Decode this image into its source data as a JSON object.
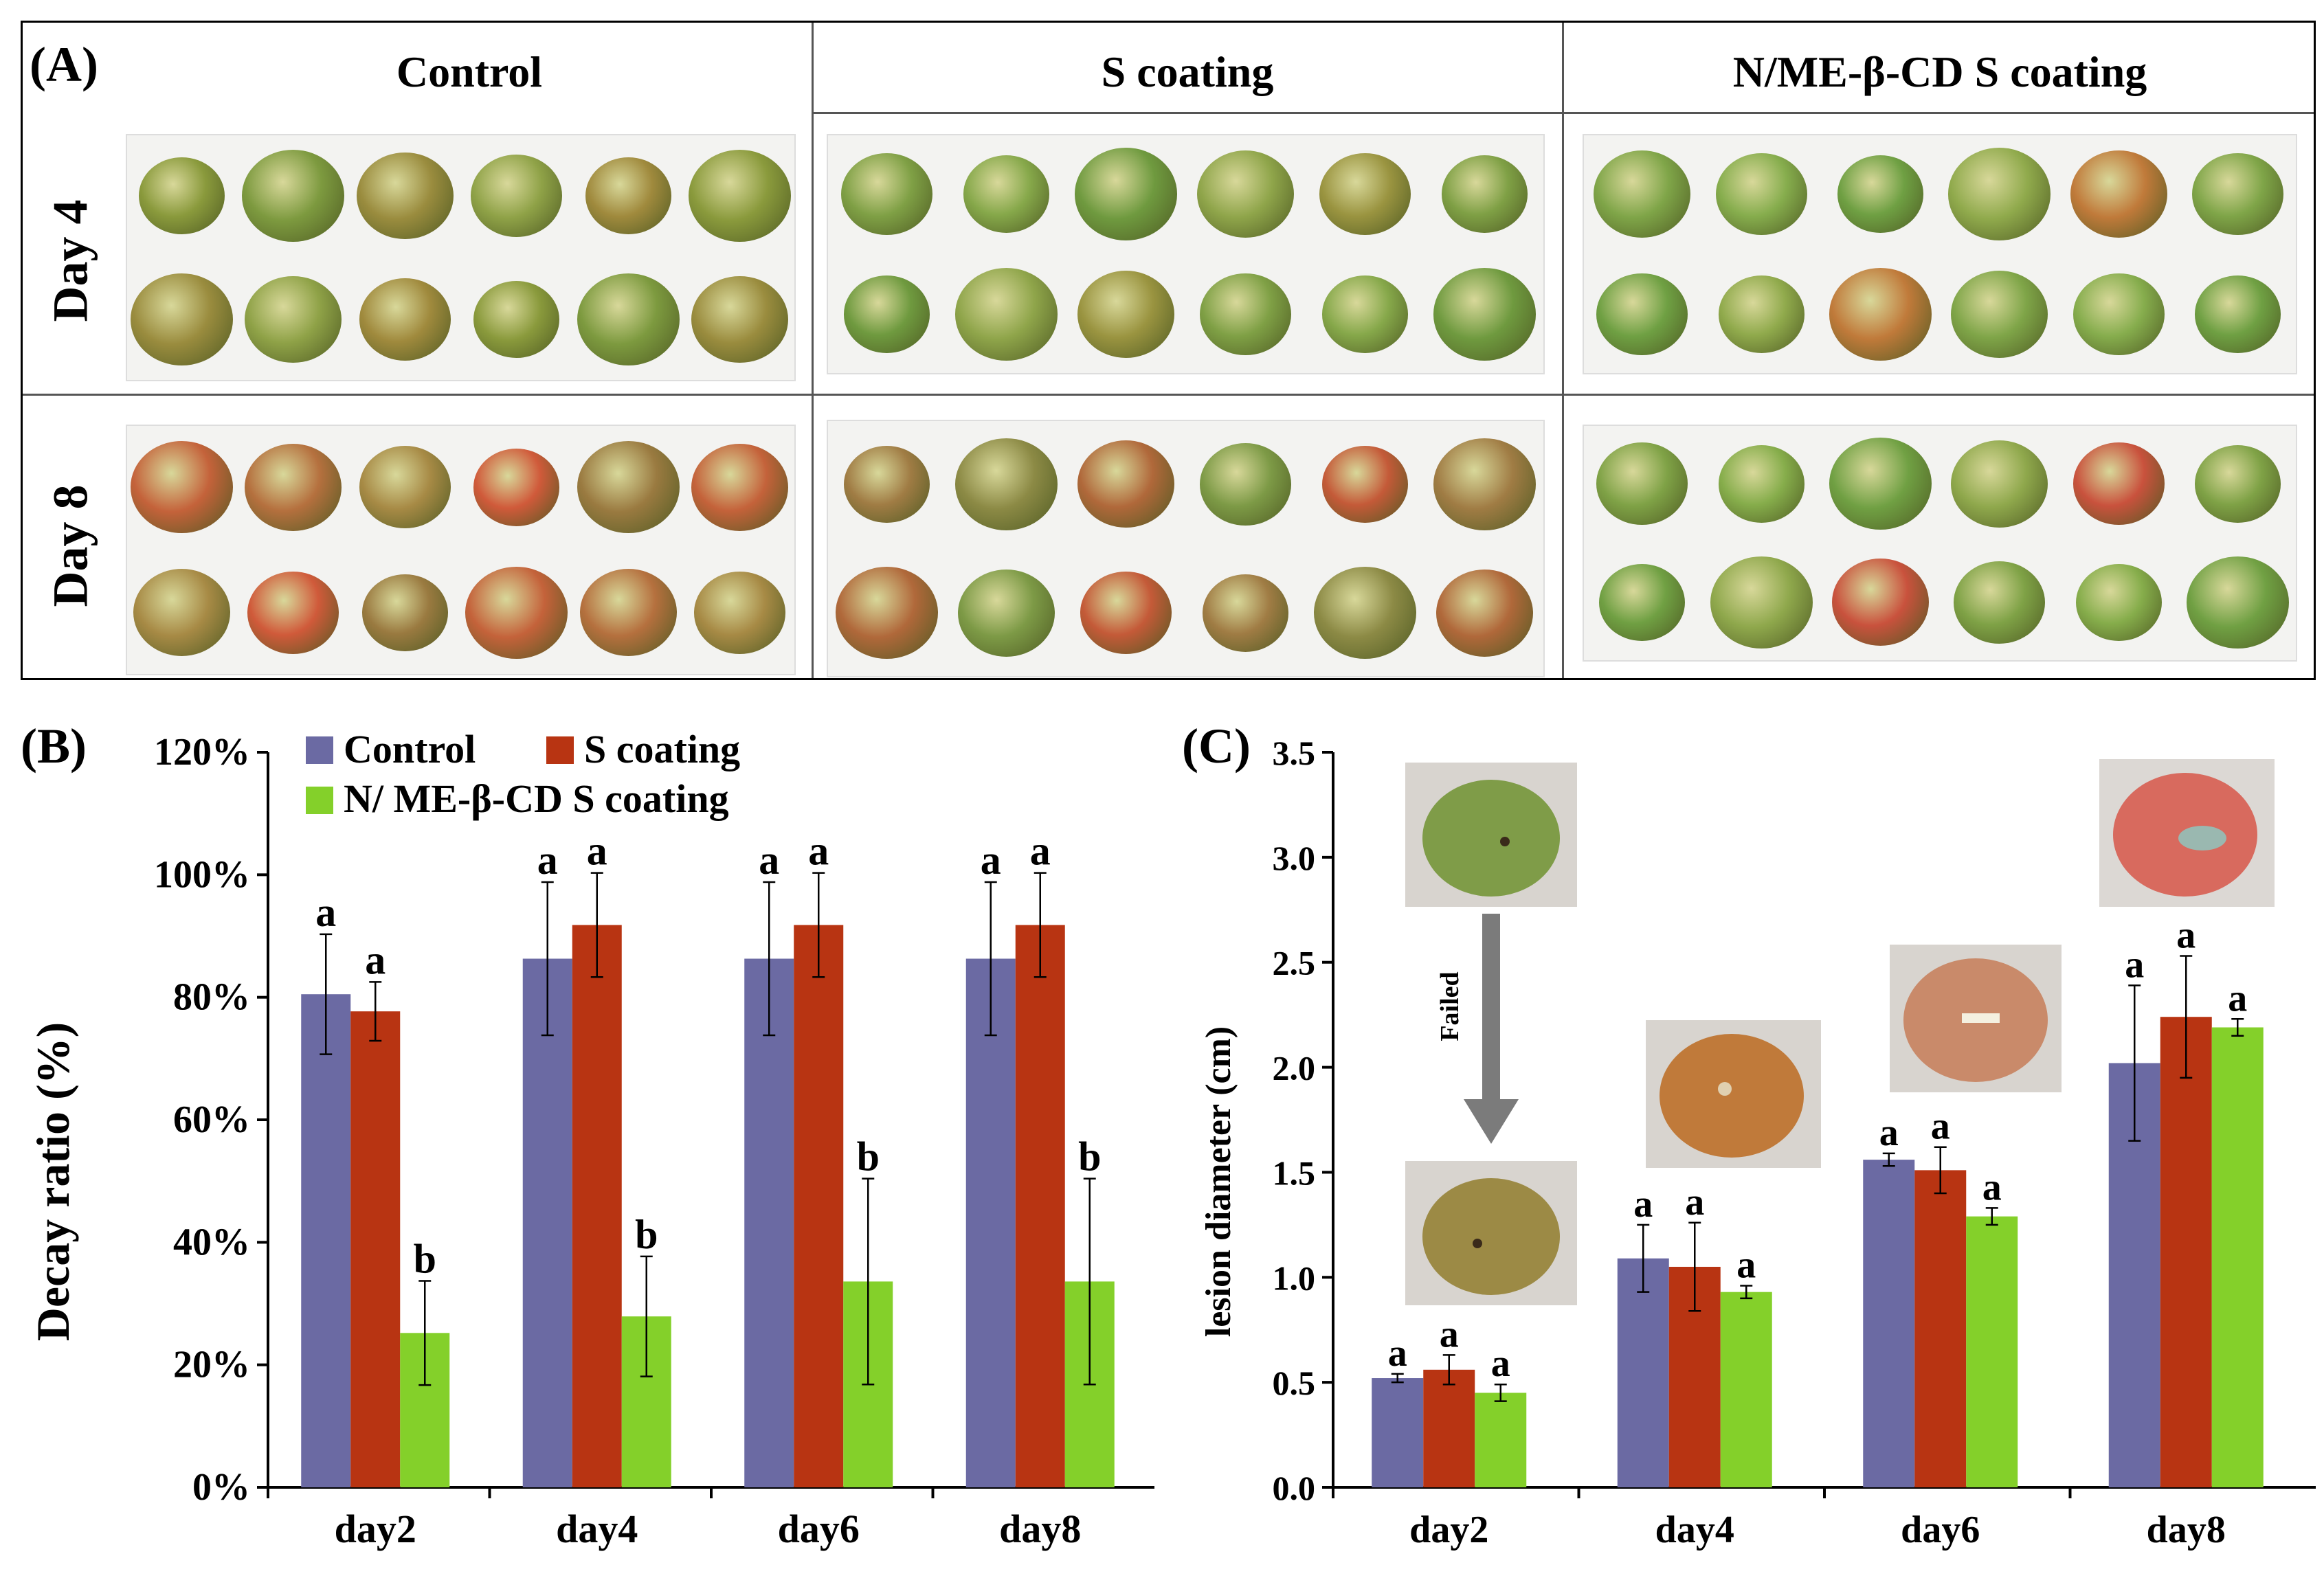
{
  "panelA": {
    "label": "(A)",
    "columns": [
      "Control",
      "S coating",
      "N/ME-β-CD S coating"
    ],
    "rows": [
      "Day 4",
      "Day 8"
    ]
  },
  "chartB": {
    "panel_label": "(B)",
    "legend": [
      "Control",
      "S coating",
      "N/ ME-β-CD S coating"
    ]
  },
  "chartC": {
    "panel_label": "(C)",
    "annotation": "Failed"
  },
  "colors": {
    "control": "#6b6aa3",
    "s_coating": "#b83412",
    "nme": "#84d02a"
  },
  "chart_data": [
    {
      "type": "bar",
      "title": "",
      "xlabel": "",
      "ylabel": "Decay ratio (%)",
      "ylim": [
        0,
        120
      ],
      "yticks": [
        0,
        20,
        40,
        60,
        80,
        100,
        120
      ],
      "ytick_labels": [
        "0%",
        "20%",
        "40%",
        "60%",
        "80%",
        "100%",
        "120%"
      ],
      "categories": [
        "day2",
        "day4",
        "day6",
        "day8"
      ],
      "series": [
        {
          "name": "Control",
          "values": [
            80.5,
            86.3,
            86.3,
            86.3
          ],
          "errors": [
            9.8,
            12.5,
            12.5,
            12.5
          ],
          "letters": [
            "a",
            "a",
            "a",
            "a"
          ]
        },
        {
          "name": "S coating",
          "values": [
            77.7,
            91.8,
            91.8,
            91.8
          ],
          "errors": [
            4.8,
            8.5,
            8.5,
            8.5
          ],
          "letters": [
            "a",
            "a",
            "a",
            "a"
          ]
        },
        {
          "name": "N/ ME-β-CD S coating",
          "values": [
            25.2,
            27.9,
            33.6,
            33.6
          ],
          "errors": [
            8.5,
            9.8,
            16.8,
            16.8
          ],
          "letters": [
            "b",
            "b",
            "b",
            "b"
          ]
        }
      ]
    },
    {
      "type": "bar",
      "title": "",
      "xlabel": "",
      "ylabel": "lesion diameter (cm)",
      "ylim": [
        0,
        3.5
      ],
      "yticks": [
        0.0,
        0.5,
        1.0,
        1.5,
        2.0,
        2.5,
        3.0,
        3.5
      ],
      "ytick_labels": [
        "0.0",
        "0.5",
        "1.0",
        "1.5",
        "2.0",
        "2.5",
        "3.0",
        "3.5"
      ],
      "categories": [
        "day2",
        "day4",
        "day6",
        "day8"
      ],
      "series": [
        {
          "name": "Control",
          "values": [
            0.52,
            1.09,
            1.56,
            2.02
          ],
          "errors": [
            0.02,
            0.16,
            0.03,
            0.37
          ],
          "letters": [
            "a",
            "a",
            "a",
            "a"
          ]
        },
        {
          "name": "S coating",
          "values": [
            0.56,
            1.05,
            1.51,
            2.24
          ],
          "errors": [
            0.07,
            0.21,
            0.11,
            0.29
          ],
          "letters": [
            "a",
            "a",
            "a",
            "a"
          ]
        },
        {
          "name": "N/ME-β-CD S coating",
          "values": [
            0.45,
            0.93,
            1.29,
            2.19
          ],
          "errors": [
            0.04,
            0.03,
            0.04,
            0.04
          ],
          "letters": [
            "a",
            "a",
            "a",
            "a"
          ]
        }
      ]
    }
  ]
}
